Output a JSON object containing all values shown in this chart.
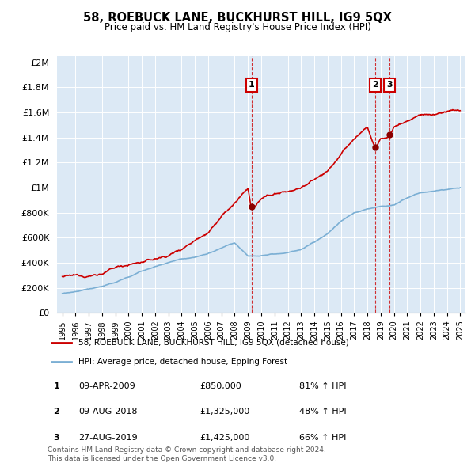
{
  "title": "58, ROEBUCK LANE, BUCKHURST HILL, IG9 5QX",
  "subtitle": "Price paid vs. HM Land Registry's House Price Index (HPI)",
  "legend_line1": "58, ROEBUCK LANE, BUCKHURST HILL, IG9 5QX (detached house)",
  "legend_line2": "HPI: Average price, detached house, Epping Forest",
  "sale_color": "#cc0000",
  "hpi_color": "#7bafd4",
  "plot_bg": "#dce9f5",
  "marker_color": "#8b0000",
  "dashed_color": "#cc0000",
  "transactions": [
    {
      "label": "1",
      "date": "09-APR-2009",
      "price": 850000,
      "pct": "81% ↑ HPI",
      "x": 2009.27
    },
    {
      "label": "2",
      "date": "09-AUG-2018",
      "price": 1325000,
      "pct": "48% ↑ HPI",
      "x": 2018.61
    },
    {
      "label": "3",
      "date": "27-AUG-2019",
      "price": 1425000,
      "pct": "66% ↑ HPI",
      "x": 2019.66
    }
  ],
  "footer1": "Contains HM Land Registry data © Crown copyright and database right 2024.",
  "footer2": "This data is licensed under the Open Government Licence v3.0.",
  "ylim": [
    0,
    2050000
  ],
  "yticks": [
    0,
    200000,
    400000,
    600000,
    800000,
    1000000,
    1200000,
    1400000,
    1600000,
    1800000,
    2000000
  ],
  "background_color": "#ffffff",
  "sale_control_x": [
    1995,
    1996,
    1997,
    1998,
    1999,
    2000,
    2001,
    2002,
    2003,
    2004,
    2005,
    2006,
    2007,
    2008,
    2009.0,
    2009.27,
    2009.5,
    2010,
    2011,
    2012,
    2013,
    2014,
    2015,
    2016,
    2017,
    2018.0,
    2018.61,
    2019.0,
    2019.66,
    2020,
    2021,
    2022,
    2023,
    2024,
    2025
  ],
  "sale_control_y": [
    290000,
    285000,
    295000,
    320000,
    360000,
    390000,
    410000,
    430000,
    460000,
    520000,
    600000,
    680000,
    800000,
    900000,
    1020000,
    850000,
    870000,
    920000,
    960000,
    980000,
    1020000,
    1080000,
    1150000,
    1280000,
    1400000,
    1500000,
    1325000,
    1400000,
    1425000,
    1500000,
    1550000,
    1600000,
    1600000,
    1620000,
    1620000
  ],
  "hpi_control_x": [
    1995,
    1996,
    1997,
    1998,
    1999,
    2000,
    2001,
    2002,
    2003,
    2004,
    2005,
    2006,
    2007,
    2008,
    2009,
    2010,
    2011,
    2012,
    2013,
    2014,
    2015,
    2016,
    2017,
    2018,
    2019,
    2020,
    2021,
    2022,
    2023,
    2024,
    2025
  ],
  "hpi_control_y": [
    155000,
    165000,
    185000,
    210000,
    240000,
    280000,
    330000,
    370000,
    400000,
    430000,
    450000,
    480000,
    520000,
    560000,
    465000,
    470000,
    490000,
    500000,
    520000,
    570000,
    640000,
    740000,
    810000,
    840000,
    860000,
    870000,
    930000,
    970000,
    980000,
    990000,
    1000000
  ]
}
